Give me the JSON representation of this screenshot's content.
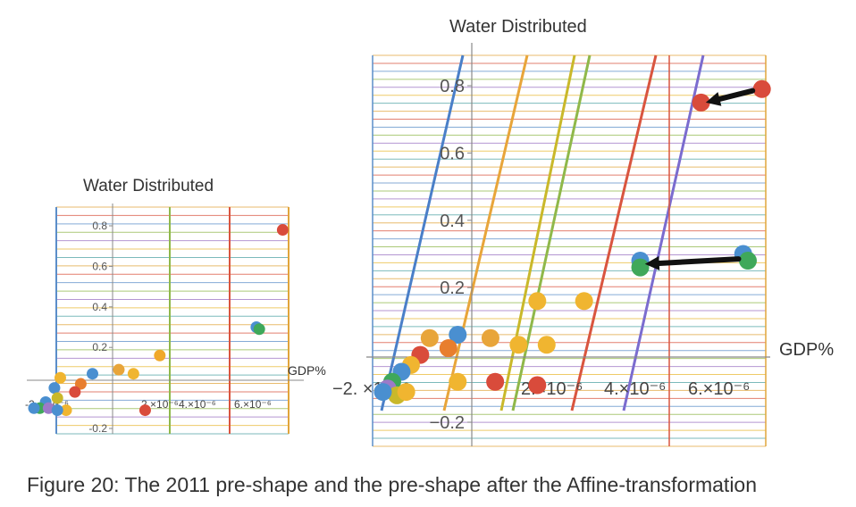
{
  "caption": "Figure 20: The 2011 pre-shape and the pre-shape after the Affine-transformation",
  "chart_data": [
    {
      "type": "scatter",
      "title": "",
      "xlabel": "GDP%",
      "ylabel": "Water Distributed",
      "xlim": [
        -2.5e-06,
        6.8e-06
      ],
      "ylim": [
        -0.22,
        0.9
      ],
      "x_tick_labels": [
        "-2. ×10⁻⁶",
        "2.×10⁻⁶",
        "4.×10⁻⁶",
        "6.×10⁻⁶"
      ],
      "x_tick_values": [
        -2e-06,
        2e-06,
        4e-06,
        6e-06
      ],
      "y_tick_labels": [
        "0.8",
        "0.6",
        "0.4",
        "0.2",
        "-0.2"
      ],
      "y_tick_values": [
        0.8,
        0.6,
        0.4,
        0.2,
        -0.2
      ],
      "grid": true,
      "points": [
        {
          "x": 6.5e-06,
          "y": 0.78,
          "color": "#d94b3b"
        },
        {
          "x": 5.6e-06,
          "y": 0.3,
          "color": "#4a8fd0"
        },
        {
          "x": 5.7e-06,
          "y": 0.29,
          "color": "#3fa85a"
        },
        {
          "x": 2.3e-06,
          "y": 0.16,
          "color": "#f0a82a"
        },
        {
          "x": 9e-07,
          "y": 0.09,
          "color": "#e8a53a"
        },
        {
          "x": 1.4e-06,
          "y": 0.07,
          "color": "#f0b530"
        },
        {
          "x": 0.0,
          "y": 0.07,
          "color": "#4a8fd0"
        },
        {
          "x": -1.1e-06,
          "y": 0.05,
          "color": "#f0b530"
        },
        {
          "x": -4e-07,
          "y": 0.02,
          "color": "#e87e2e"
        },
        {
          "x": -6e-07,
          "y": -0.02,
          "color": "#d94b3b"
        },
        {
          "x": -1.3e-06,
          "y": 0.0,
          "color": "#4a8fd0"
        },
        {
          "x": -1.2e-06,
          "y": -0.05,
          "color": "#c9b82a"
        },
        {
          "x": -1.6e-06,
          "y": -0.07,
          "color": "#4a8fd0"
        },
        {
          "x": -1.8e-06,
          "y": -0.1,
          "color": "#3fa85a"
        },
        {
          "x": -1.5e-06,
          "y": -0.1,
          "color": "#9c7ac8"
        },
        {
          "x": -9e-07,
          "y": -0.11,
          "color": "#f0b530"
        },
        {
          "x": -1.2e-06,
          "y": -0.11,
          "color": "#4a8fd0"
        },
        {
          "x": -2e-06,
          "y": -0.1,
          "color": "#4a8fd0"
        },
        {
          "x": 1.8e-06,
          "y": -0.11,
          "color": "#d94b3b"
        }
      ]
    },
    {
      "type": "scatter",
      "title": "",
      "xlabel": "GDP%",
      "ylabel": "Water Distributed",
      "xlim": [
        -2.8e-06,
        6.6e-06
      ],
      "ylim": [
        -0.24,
        0.92
      ],
      "x_tick_labels": [
        "−2. ×10⁻⁶",
        "2.×10⁻⁶",
        "4.×10⁻⁶",
        "6.×10⁻⁶"
      ],
      "x_tick_values": [
        -2e-06,
        2e-06,
        4e-06,
        6e-06
      ],
      "y_tick_labels": [
        "0.8",
        "0.6",
        "0.4",
        "0.2",
        "−0.2"
      ],
      "y_tick_values": [
        0.8,
        0.6,
        0.4,
        0.2,
        -0.2
      ],
      "grid": true,
      "points": [
        {
          "x": 6.3e-06,
          "y": 0.79,
          "color": "#d94b3b"
        },
        {
          "x": 5e-06,
          "y": 0.75,
          "color": "#d94b3b"
        },
        {
          "x": 5.9e-06,
          "y": 0.3,
          "color": "#4a8fd0"
        },
        {
          "x": 6e-06,
          "y": 0.28,
          "color": "#3fa85a"
        },
        {
          "x": 3.7e-06,
          "y": 0.28,
          "color": "#4a8fd0"
        },
        {
          "x": 3.7e-06,
          "y": 0.26,
          "color": "#3fa85a"
        },
        {
          "x": 1.5e-06,
          "y": 0.16,
          "color": "#f0b530"
        },
        {
          "x": 2.5e-06,
          "y": 0.16,
          "color": "#f0b530"
        },
        {
          "x": 1.7e-06,
          "y": 0.03,
          "color": "#f0b530"
        },
        {
          "x": 1.1e-06,
          "y": 0.03,
          "color": "#f0b530"
        },
        {
          "x": 5e-07,
          "y": 0.05,
          "color": "#e8a53a"
        },
        {
          "x": -2e-07,
          "y": 0.06,
          "color": "#4a8fd0"
        },
        {
          "x": -8e-07,
          "y": 0.05,
          "color": "#e8a53a"
        },
        {
          "x": -4e-07,
          "y": 0.02,
          "color": "#e87e2e"
        },
        {
          "x": -1e-06,
          "y": 0.0,
          "color": "#d94b3b"
        },
        {
          "x": -1.2e-06,
          "y": -0.03,
          "color": "#f0b530"
        },
        {
          "x": -1.4e-06,
          "y": -0.05,
          "color": "#4a8fd0"
        },
        {
          "x": -1.6e-06,
          "y": -0.08,
          "color": "#3fa85a"
        },
        {
          "x": -1.7e-06,
          "y": -0.1,
          "color": "#9c7ac8"
        },
        {
          "x": -1.5e-06,
          "y": -0.12,
          "color": "#c9b82a"
        },
        {
          "x": -1.8e-06,
          "y": -0.11,
          "color": "#4a8fd0"
        },
        {
          "x": -1.3e-06,
          "y": -0.11,
          "color": "#f0b530"
        },
        {
          "x": -2e-07,
          "y": -0.08,
          "color": "#f0b530"
        },
        {
          "x": 6e-07,
          "y": -0.08,
          "color": "#d94b3b"
        },
        {
          "x": 1.5e-06,
          "y": -0.09,
          "color": "#d94b3b"
        }
      ],
      "arrows": [
        {
          "from": [
            6.1e-06,
            0.785
          ],
          "to": [
            5.1e-06,
            0.75
          ],
          "color": "#111111"
        },
        {
          "from": [
            5.8e-06,
            0.285
          ],
          "to": [
            3.8e-06,
            0.27
          ],
          "color": "#111111"
        }
      ]
    }
  ]
}
